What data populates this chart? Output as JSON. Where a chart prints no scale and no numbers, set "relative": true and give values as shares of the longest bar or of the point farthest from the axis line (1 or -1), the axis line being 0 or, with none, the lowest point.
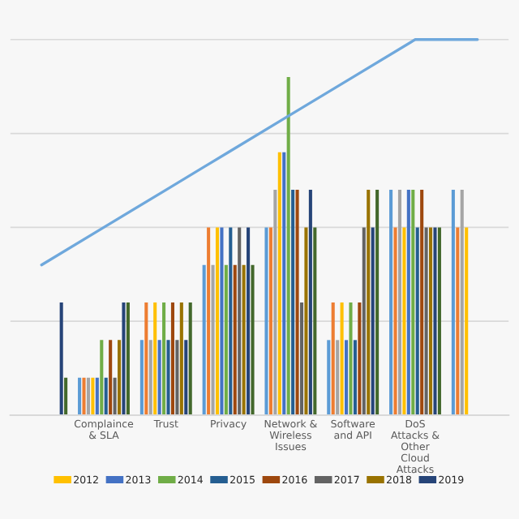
{
  "chart_data": {
    "type": "bar",
    "relative": true,
    "grid": "y",
    "legend": "bottom",
    "categories": [
      null,
      "Complaince & SLA",
      "Trust",
      "Privacy",
      "Network & Wireless Issues",
      "Software and API",
      "DoS Attacks & Other Cloud Attacks",
      null
    ],
    "series": [
      {
        "color": "#5b9bd5",
        "values": [
          null,
          0.1,
          0.2,
          0.4,
          0.5,
          0.2,
          0.6,
          0.6
        ]
      },
      {
        "color": "#ed7d31",
        "values": [
          null,
          0.1,
          0.3,
          0.5,
          0.5,
          0.3,
          0.5,
          0.5
        ]
      },
      {
        "color": "#a5a5a5",
        "values": [
          null,
          0.1,
          0.2,
          0.4,
          0.6,
          0.2,
          0.6,
          0.6
        ]
      },
      {
        "name": "2012",
        "color": "#ffc000",
        "values": [
          null,
          0.1,
          0.3,
          0.5,
          0.7,
          0.3,
          0.5,
          0.5
        ]
      },
      {
        "name": "2013",
        "color": "#4472c4",
        "values": [
          null,
          0.1,
          0.2,
          0.5,
          0.7,
          0.2,
          0.6,
          null
        ]
      },
      {
        "name": "2014",
        "color": "#70ad47",
        "values": [
          null,
          0.2,
          0.3,
          0.4,
          0.9,
          0.3,
          0.6,
          null
        ]
      },
      {
        "name": "2015",
        "color": "#255e91",
        "values": [
          null,
          0.1,
          0.2,
          0.5,
          0.6,
          0.2,
          0.5,
          null
        ]
      },
      {
        "name": "2016",
        "color": "#9e480e",
        "values": [
          null,
          0.2,
          0.3,
          0.4,
          0.6,
          0.3,
          0.6,
          null
        ]
      },
      {
        "name": "2017",
        "color": "#636363",
        "values": [
          null,
          0.1,
          0.2,
          0.5,
          0.3,
          0.5,
          0.5,
          null
        ]
      },
      {
        "name": "2018",
        "color": "#997300",
        "values": [
          null,
          0.2,
          0.3,
          0.4,
          0.5,
          0.6,
          0.5,
          null
        ]
      },
      {
        "name": "2019",
        "color": "#264478",
        "values": [
          0.3,
          0.3,
          0.2,
          0.5,
          0.6,
          0.5,
          0.5,
          null
        ]
      },
      {
        "color": "#43682b",
        "values": [
          0.1,
          0.3,
          0.3,
          0.4,
          0.5,
          0.6,
          0.5,
          null
        ]
      },
      {
        "type": "line",
        "color": "#6fa8dc",
        "values": [
          0.4,
          0.5,
          0.6,
          0.7,
          0.8,
          0.9,
          1.0,
          1.0
        ]
      }
    ]
  }
}
